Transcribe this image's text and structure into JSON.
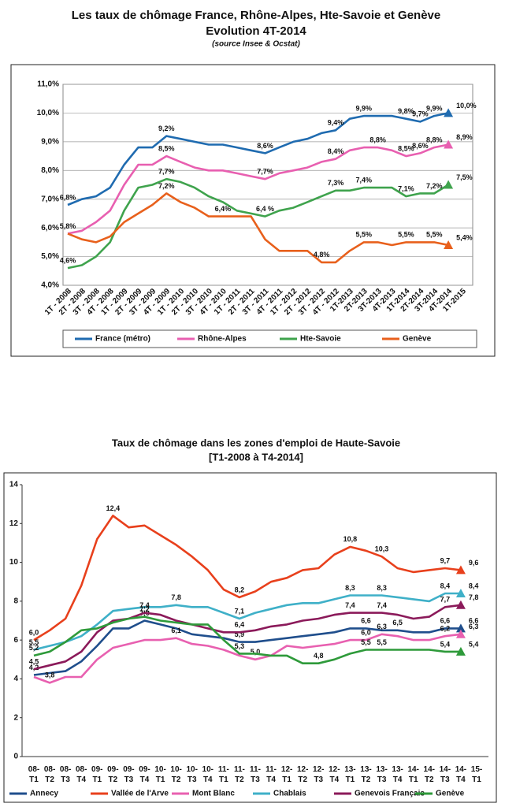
{
  "chart_data": [
    {
      "type": "line",
      "title": "Les taux de chômage France, Rhône-Alpes, Hte-Savoie et Genève",
      "subtitle": "Evolution 4T-2014",
      "source": "(source Insee & Ocstat)",
      "categories": [
        "1T - 2008",
        "2T - 2008",
        "3T - 2008",
        "4T - 2008",
        "1T - 2009",
        "2T - 2009",
        "3T - 2009",
        "4T - 2009",
        "1T - 2010",
        "2T - 2010",
        "3T - 2010",
        "4T - 2010",
        "1T - 2011",
        "2T - 2011",
        "3T - 2011",
        "4T - 2011",
        "1T - 2012",
        "2T - 2012",
        "3T - 2012",
        "4T - 2012",
        "1T-2013",
        "2T-2013",
        "3T-2013",
        "4T-2013",
        "1T-2014",
        "2T-2014",
        "3T-2014",
        "4T-2014",
        "1T-2015"
      ],
      "ylim": [
        4,
        11
      ],
      "yticks": [
        {
          "value": 4,
          "label": "4,0%"
        },
        {
          "value": 5,
          "label": "5,0%"
        },
        {
          "value": 6,
          "label": "6,0%"
        },
        {
          "value": 7,
          "label": "7,0%"
        },
        {
          "value": 8,
          "label": "8,0%"
        },
        {
          "value": 9,
          "label": "9,0%"
        },
        {
          "value": 10,
          "label": "10,0%"
        },
        {
          "value": 11,
          "label": "11,0%"
        }
      ],
      "grid": true,
      "legend": "bottom",
      "series": [
        {
          "name": "France (métro)",
          "color": "#1f6bb0",
          "values": [
            6.8,
            7.0,
            7.1,
            7.4,
            8.2,
            8.8,
            8.8,
            9.2,
            9.1,
            9.0,
            8.9,
            8.9,
            8.8,
            8.7,
            8.6,
            8.8,
            9.0,
            9.1,
            9.3,
            9.4,
            9.8,
            9.9,
            9.9,
            9.9,
            9.8,
            9.7,
            9.9,
            10.0,
            null
          ],
          "value_labels": [
            "6,8%",
            null,
            null,
            null,
            null,
            null,
            null,
            "9,2%",
            null,
            null,
            null,
            null,
            null,
            null,
            "8,6%",
            null,
            null,
            null,
            null,
            "9,4%",
            null,
            "9,9%",
            null,
            null,
            "9,8%",
            "9,7%",
            "9,9%",
            "10,0%",
            null
          ]
        },
        {
          "name": "Rhône-Alpes",
          "color": "#e85fb0",
          "values": [
            5.8,
            5.9,
            6.2,
            6.6,
            7.5,
            8.2,
            8.2,
            8.5,
            8.3,
            8.1,
            8.0,
            8.0,
            7.9,
            7.8,
            7.7,
            7.9,
            8.0,
            8.1,
            8.3,
            8.4,
            8.7,
            8.8,
            8.8,
            8.7,
            8.5,
            8.6,
            8.8,
            8.9,
            null
          ],
          "value_labels": [
            "5,8%",
            null,
            null,
            null,
            null,
            null,
            null,
            "8,5%",
            null,
            null,
            null,
            null,
            null,
            null,
            "7,7%",
            null,
            null,
            null,
            null,
            "8,4%",
            null,
            null,
            "8,8%",
            null,
            "8,5%",
            "8,6%",
            "8,8%",
            "8,9%",
            null
          ]
        },
        {
          "name": "Hte-Savoie",
          "color": "#3fa34d",
          "values": [
            4.6,
            4.7,
            5.0,
            5.5,
            6.6,
            7.4,
            7.5,
            7.7,
            7.6,
            7.4,
            7.1,
            6.9,
            6.6,
            6.5,
            6.4,
            6.6,
            6.7,
            6.9,
            7.1,
            7.3,
            7.3,
            7.4,
            7.4,
            7.4,
            7.1,
            7.2,
            7.2,
            7.5,
            null
          ],
          "value_labels": [
            "4,6%",
            null,
            null,
            null,
            null,
            null,
            null,
            "7,7%",
            null,
            null,
            null,
            null,
            null,
            null,
            "6,4 %",
            null,
            null,
            null,
            null,
            "7,3%",
            null,
            "7,4%",
            null,
            null,
            "7,1%",
            null,
            "7,2%",
            "7,5%",
            null
          ]
        },
        {
          "name": "Genève",
          "color": "#e8601c",
          "values": [
            5.8,
            5.6,
            5.5,
            5.7,
            6.2,
            6.5,
            6.8,
            7.2,
            6.9,
            6.7,
            6.4,
            6.4,
            6.4,
            6.4,
            5.6,
            5.2,
            5.2,
            5.2,
            4.8,
            4.8,
            5.2,
            5.5,
            5.5,
            5.4,
            5.5,
            5.5,
            5.5,
            5.4,
            null
          ],
          "value_labels": [
            null,
            null,
            null,
            null,
            null,
            null,
            null,
            "7,2%",
            null,
            null,
            null,
            "6,4%",
            null,
            null,
            null,
            null,
            null,
            null,
            "4,8%",
            null,
            null,
            "5,5%",
            null,
            null,
            "5,5%",
            null,
            "5,5%",
            "5,4%",
            null
          ]
        }
      ]
    },
    {
      "type": "line",
      "title": "Taux de chômage dans les zones d'emploi de Haute-Savoie",
      "subtitle": "[T1-2008 à T4-2014]",
      "categories": [
        "08-T1",
        "08-T2",
        "08-T3",
        "08-T4",
        "09-T1",
        "09-T2",
        "09-T3",
        "09-T4",
        "10-T1",
        "10-T2",
        "10-T3",
        "10-T4",
        "11-T1",
        "11-T2",
        "11-T3",
        "11-T4",
        "12-T1",
        "12-T2",
        "12-T3",
        "12-T4",
        "13-T1",
        "13-T2",
        "13-T3",
        "13-T4",
        "14-T1",
        "14-T2",
        "14-T3",
        "14-T4",
        "15-T1"
      ],
      "ylim": [
        0,
        14
      ],
      "yticks": [
        0,
        2,
        4,
        6,
        8,
        10,
        12,
        14
      ],
      "grid": false,
      "legend": "bottom",
      "series": [
        {
          "name": "Annecy",
          "color": "#1f4e8c",
          "values": [
            4.2,
            4.3,
            4.4,
            4.9,
            5.7,
            6.6,
            6.6,
            7.0,
            6.8,
            6.6,
            6.3,
            6.2,
            6.1,
            5.9,
            5.9,
            6.0,
            6.1,
            6.2,
            6.3,
            6.4,
            6.6,
            6.6,
            6.5,
            6.5,
            6.4,
            6.4,
            6.6,
            6.6,
            null
          ],
          "value_labels": [
            "4,2",
            null,
            null,
            null,
            null,
            null,
            null,
            "7,0",
            null,
            null,
            null,
            null,
            null,
            "5,9",
            null,
            null,
            null,
            null,
            null,
            null,
            null,
            "6,6",
            null,
            "6,5",
            null,
            null,
            "6,6",
            "6,6",
            null
          ]
        },
        {
          "name": "Vallée de l'Arve",
          "color": "#e8401c",
          "values": [
            6.0,
            6.5,
            7.1,
            8.8,
            11.2,
            12.4,
            11.8,
            11.9,
            11.4,
            10.9,
            10.3,
            9.6,
            8.6,
            8.2,
            8.5,
            9.0,
            9.2,
            9.6,
            9.7,
            10.4,
            10.8,
            10.6,
            10.3,
            9.7,
            9.5,
            9.6,
            9.7,
            9.6,
            null
          ],
          "value_labels": [
            "6,0",
            null,
            null,
            null,
            null,
            "12,4",
            null,
            null,
            null,
            null,
            null,
            null,
            null,
            "8,2",
            null,
            null,
            null,
            null,
            null,
            null,
            "10,8",
            null,
            "10,3",
            null,
            null,
            null,
            "9,7",
            "9,6",
            null
          ]
        },
        {
          "name": "Mont Blanc",
          "color": "#e860b0",
          "values": [
            4.1,
            3.8,
            4.1,
            4.1,
            5.0,
            5.6,
            5.8,
            6.0,
            6.0,
            6.1,
            5.8,
            5.7,
            5.5,
            5.2,
            5.0,
            5.2,
            5.7,
            5.6,
            5.7,
            5.8,
            6.0,
            6.0,
            6.3,
            6.2,
            6.0,
            6.0,
            6.2,
            6.3,
            null
          ],
          "value_labels": [
            null,
            "3,8",
            null,
            null,
            null,
            null,
            null,
            null,
            null,
            "6,1",
            null,
            null,
            null,
            null,
            "5,0",
            null,
            null,
            null,
            null,
            null,
            null,
            "6,0",
            "6,3",
            null,
            null,
            null,
            "6,2",
            "6,3",
            null
          ]
        },
        {
          "name": "Chablais",
          "color": "#3fb0c8",
          "values": [
            5.5,
            5.7,
            5.9,
            6.2,
            6.8,
            7.5,
            7.6,
            7.7,
            7.7,
            7.8,
            7.7,
            7.7,
            7.4,
            7.1,
            7.4,
            7.6,
            7.8,
            7.9,
            7.9,
            8.1,
            8.3,
            8.3,
            8.3,
            8.2,
            8.1,
            8.0,
            8.4,
            8.4,
            null
          ],
          "value_labels": [
            "5,5",
            null,
            null,
            null,
            null,
            null,
            null,
            null,
            null,
            "7,8",
            null,
            null,
            null,
            "7,1",
            null,
            null,
            null,
            null,
            null,
            null,
            "8,3",
            null,
            "8,3",
            null,
            null,
            null,
            "8,4",
            "8,4",
            null
          ]
        },
        {
          "name": "Genevois Français",
          "color": "#8b1a5a",
          "values": [
            4.5,
            4.7,
            4.9,
            5.4,
            6.4,
            7.0,
            7.1,
            7.4,
            7.3,
            7.0,
            6.8,
            6.6,
            6.4,
            6.4,
            6.5,
            6.7,
            6.8,
            7.0,
            7.1,
            7.3,
            7.4,
            7.4,
            7.4,
            7.3,
            7.1,
            7.2,
            7.7,
            7.8,
            null
          ],
          "value_labels": [
            "4,5",
            null,
            null,
            null,
            null,
            null,
            null,
            "7,4",
            null,
            null,
            null,
            null,
            null,
            "6,4",
            null,
            null,
            null,
            null,
            null,
            null,
            "7,4",
            null,
            "7,4",
            null,
            null,
            null,
            "7,7",
            "7,8",
            null
          ]
        },
        {
          "name": "Genève",
          "color": "#2e9a3a",
          "values": [
            5.2,
            5.4,
            5.9,
            6.5,
            6.6,
            6.9,
            7.1,
            7.2,
            7.0,
            6.9,
            6.8,
            6.8,
            6.0,
            5.3,
            5.3,
            5.2,
            5.2,
            4.8,
            4.8,
            5.0,
            5.3,
            5.5,
            5.5,
            5.5,
            5.5,
            5.5,
            5.4,
            5.4,
            null
          ],
          "value_labels": [
            "5,2",
            null,
            null,
            null,
            null,
            null,
            null,
            "7,2",
            null,
            null,
            null,
            null,
            null,
            "5,3",
            null,
            null,
            null,
            null,
            "4,8",
            null,
            null,
            "5,5",
            "5,5",
            null,
            null,
            null,
            "5,4",
            "5,4",
            null
          ]
        }
      ]
    }
  ]
}
